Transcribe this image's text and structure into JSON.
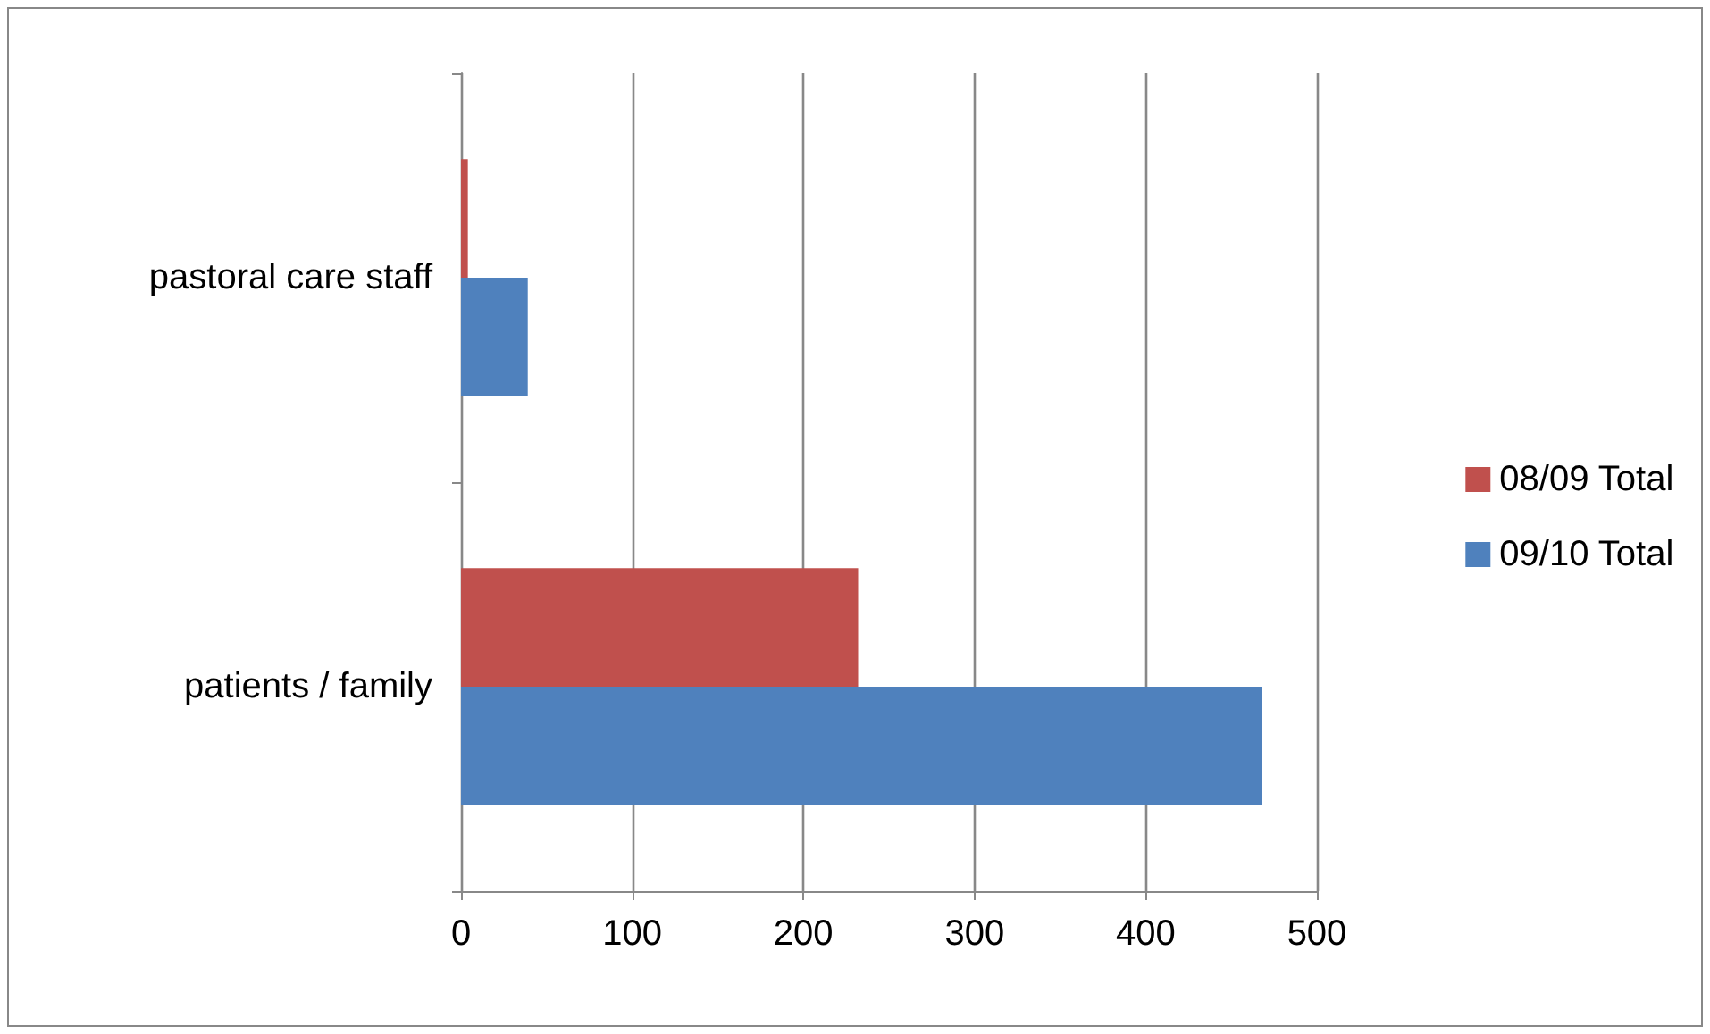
{
  "chart_data": {
    "type": "bar",
    "orientation": "horizontal",
    "categories": [
      "pastoral care staff",
      "patients / family"
    ],
    "series": [
      {
        "name": "08/09 Total",
        "color": "#c0504d",
        "values": [
          4,
          232
        ]
      },
      {
        "name": "09/10 Total",
        "color": "#4f81bd",
        "values": [
          39,
          468
        ]
      }
    ],
    "xlim": [
      0,
      500
    ],
    "xticks": [
      0,
      100,
      200,
      300,
      400,
      500
    ],
    "grid": "x",
    "legend": "right"
  }
}
